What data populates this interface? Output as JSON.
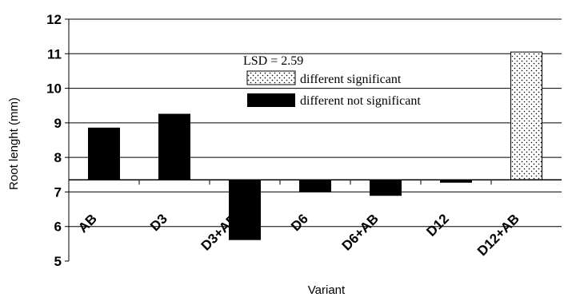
{
  "chart_data": {
    "type": "bar",
    "title": "",
    "xlabel": "Variant",
    "ylabel": "Root lenght (mm)",
    "ylim": [
      5,
      12
    ],
    "yticks": [
      "5",
      "6",
      "7",
      "8",
      "9",
      "10",
      "11",
      "12"
    ],
    "baseline": 7.35,
    "grid": true,
    "categories": [
      "AB",
      "D3",
      "D3+AB",
      "D6",
      "D6+AB",
      "D12",
      "D12+AB"
    ],
    "values": [
      8.85,
      9.25,
      5.62,
      7.0,
      6.9,
      7.28,
      11.05
    ],
    "significance": [
      "not significant",
      "not significant",
      "not significant",
      "not significant",
      "not significant",
      "not significant",
      "significant"
    ],
    "legend": {
      "position": "top-center",
      "title": "LSD = 2.59",
      "entries": [
        {
          "label": "different significant",
          "style": "dotted"
        },
        {
          "label": "different not significant",
          "style": "solid"
        }
      ]
    },
    "colors": {
      "solid": "#000000",
      "dotted_fill": "#ffffff",
      "dots": "#000000"
    }
  }
}
